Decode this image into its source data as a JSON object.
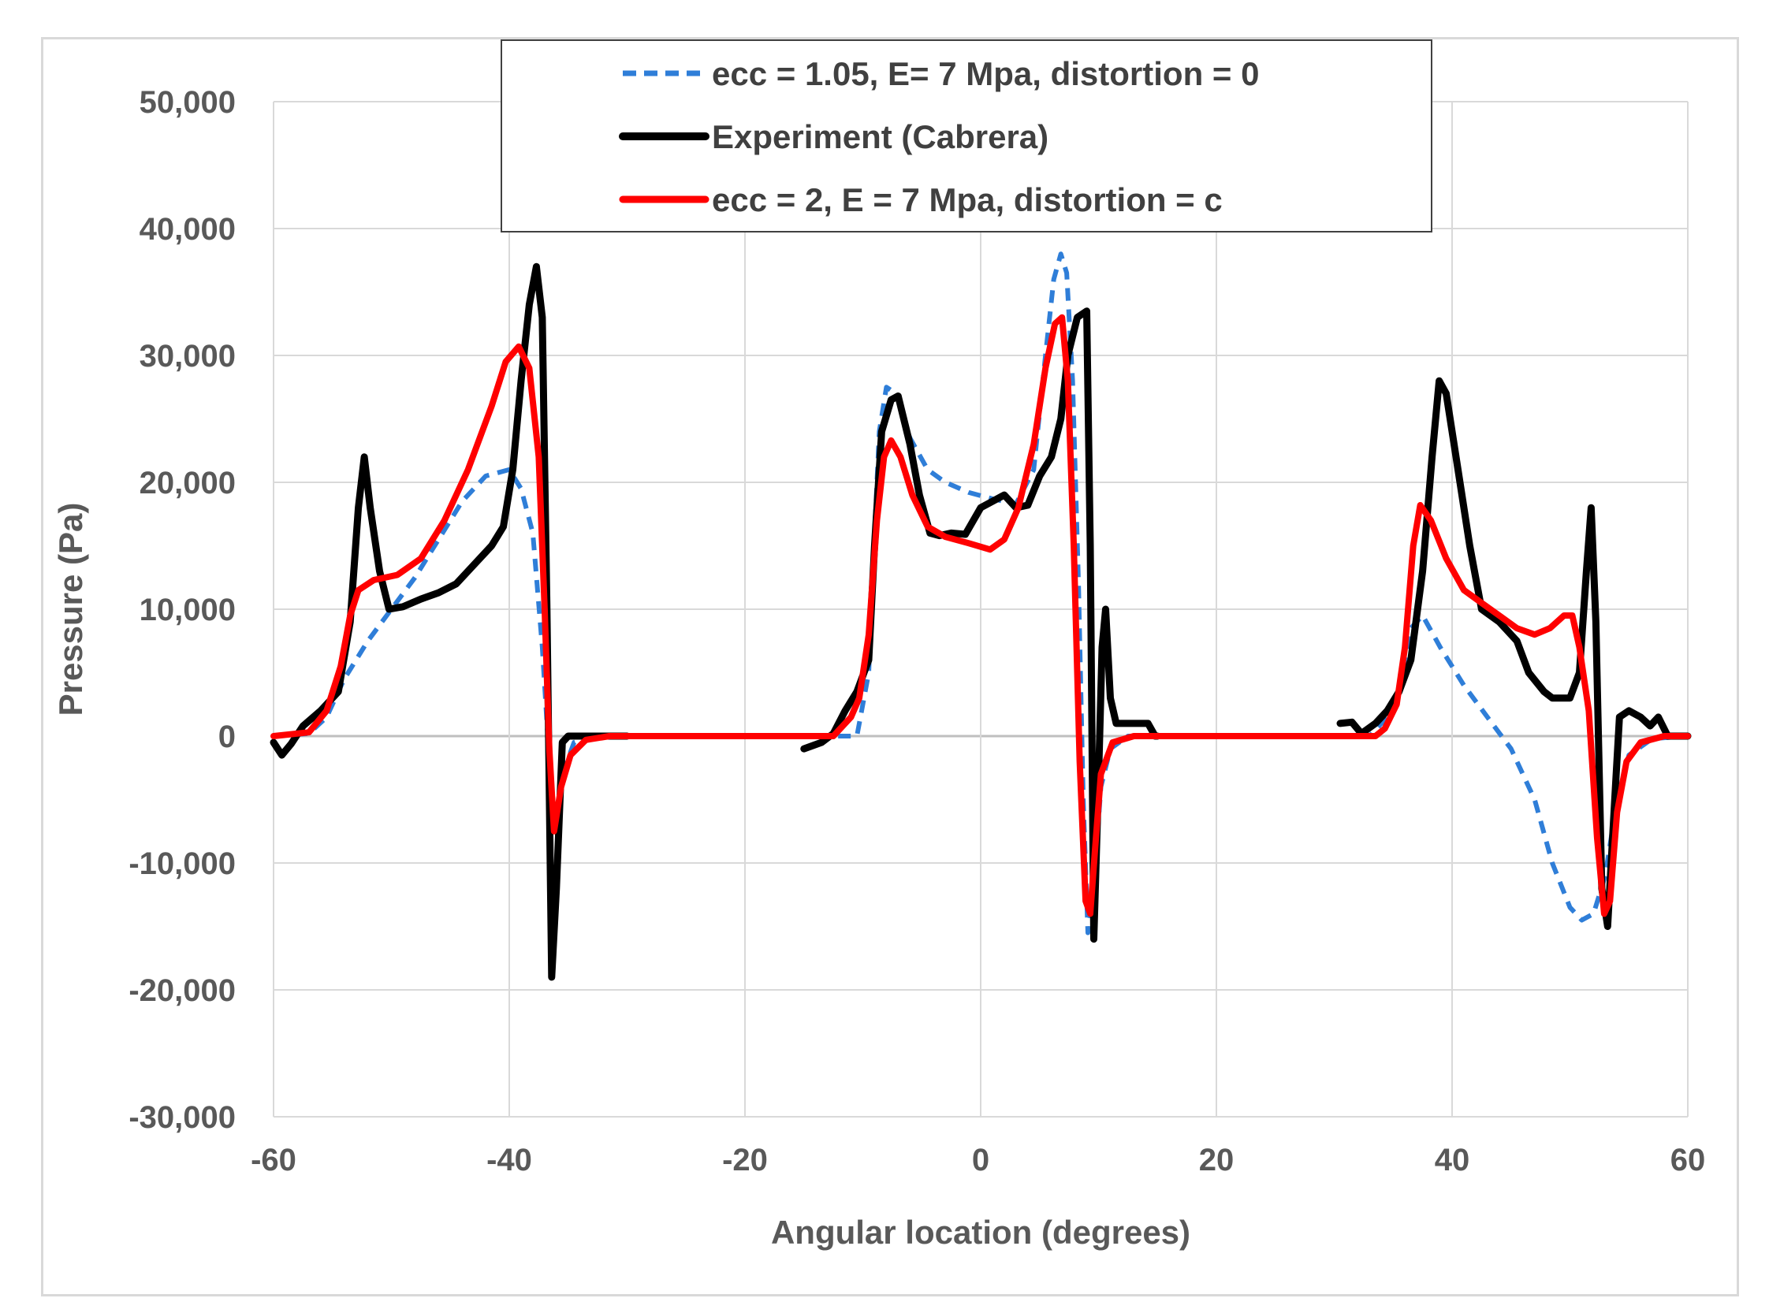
{
  "chart_data": {
    "type": "line",
    "title": "",
    "xlabel": "Angular location (degrees)",
    "ylabel": "Pressure (Pa)",
    "xlim": [
      -60,
      60
    ],
    "ylim": [
      -30000,
      50000
    ],
    "xticks": [
      -60,
      -40,
      -20,
      0,
      20,
      40,
      60
    ],
    "yticks": [
      50000,
      40000,
      30000,
      20000,
      10000,
      0,
      -10000,
      -20000,
      -30000
    ],
    "xtick_labels": [
      "-60",
      "-40",
      "-20",
      "0",
      "20",
      "40",
      "60"
    ],
    "ytick_labels": [
      "50,000",
      "40,000",
      "30,000",
      "20,000",
      "10,000",
      "0",
      "-10,000",
      "-20,000",
      "-30,000"
    ],
    "grid": true,
    "legend_position": "top-center",
    "series": [
      {
        "name": "ecc = 1.05, E= 7 Mpa, distortion = 0",
        "color": "#2f7ed8",
        "style": "dashed",
        "segments": [
          [
            [
              -60,
              0
            ],
            [
              -57,
              200
            ],
            [
              -55.5,
              1500
            ],
            [
              -54,
              4500
            ],
            [
              -52,
              7500
            ],
            [
              -50,
              10000
            ],
            [
              -48,
              12500
            ],
            [
              -46,
              15500
            ],
            [
              -44,
              18500
            ],
            [
              -42,
              20500
            ],
            [
              -40,
              21000
            ],
            [
              -39,
              19500
            ],
            [
              -38,
              16000
            ],
            [
              -37.2,
              7000
            ],
            [
              -36.6,
              -2000
            ],
            [
              -36.1,
              -7000
            ],
            [
              -35.5,
              -3000
            ],
            [
              -34.5,
              -500
            ],
            [
              -33,
              0
            ],
            [
              -30,
              0
            ],
            [
              -20,
              0
            ],
            [
              -10.5,
              0
            ],
            [
              -9.5,
              5000
            ],
            [
              -9,
              16000
            ],
            [
              -8.6,
              24000
            ],
            [
              -8,
              27500
            ],
            [
              -7.2,
              27000
            ],
            [
              -6,
              23500
            ],
            [
              -4.5,
              21000
            ],
            [
              -3,
              20000
            ],
            [
              -1,
              19200
            ],
            [
              1,
              18700
            ],
            [
              3,
              18300
            ],
            [
              4.5,
              21000
            ],
            [
              5.5,
              30000
            ],
            [
              6.2,
              36000
            ],
            [
              6.8,
              38000
            ],
            [
              7.3,
              36500
            ],
            [
              7.8,
              28000
            ],
            [
              8.3,
              12000
            ],
            [
              8.7,
              -5000
            ],
            [
              9.1,
              -15500
            ],
            [
              9.6,
              -12000
            ],
            [
              10.2,
              -4000
            ],
            [
              11,
              -1000
            ],
            [
              12.5,
              0
            ],
            [
              20,
              0
            ],
            [
              33,
              0
            ],
            [
              34.5,
              1500
            ],
            [
              35.5,
              3500
            ],
            [
              36,
              6000
            ],
            [
              36.5,
              8500
            ],
            [
              37.5,
              9500
            ],
            [
              39,
              7000
            ],
            [
              41,
              4000
            ],
            [
              43,
              1500
            ],
            [
              45,
              -1000
            ],
            [
              47,
              -5000
            ],
            [
              48.5,
              -10000
            ],
            [
              50,
              -13500
            ],
            [
              51,
              -14500
            ],
            [
              52,
              -14000
            ],
            [
              53,
              -11000
            ],
            [
              54,
              -5000
            ],
            [
              55,
              -1500
            ],
            [
              57,
              -200
            ],
            [
              60,
              0
            ]
          ]
        ]
      },
      {
        "name": "Experiment (Cabrera)",
        "color": "#000000",
        "style": "solid",
        "segments": [
          [
            [
              -60,
              -500
            ],
            [
              -59.3,
              -1500
            ],
            [
              -58.5,
              -600
            ],
            [
              -57.5,
              800
            ],
            [
              -56,
              2000
            ],
            [
              -54.5,
              3500
            ],
            [
              -53.5,
              9000
            ],
            [
              -52.8,
              18000
            ],
            [
              -52.3,
              22000
            ],
            [
              -51.8,
              18000
            ],
            [
              -51,
              13000
            ],
            [
              -50.2,
              10000
            ],
            [
              -49,
              10200
            ],
            [
              -47.5,
              10800
            ],
            [
              -46,
              11300
            ],
            [
              -44.5,
              12000
            ],
            [
              -43,
              13500
            ],
            [
              -41.5,
              15000
            ],
            [
              -40.5,
              16500
            ],
            [
              -39.7,
              21000
            ],
            [
              -39,
              28000
            ],
            [
              -38.3,
              34000
            ],
            [
              -37.7,
              37000
            ],
            [
              -37.2,
              33000
            ],
            [
              -36.8,
              10000
            ],
            [
              -36.4,
              -19000
            ],
            [
              -36,
              -12000
            ],
            [
              -35.5,
              -500
            ],
            [
              -35,
              0
            ],
            [
              -33,
              0
            ],
            [
              -30,
              0
            ]
          ],
          [
            [
              -15,
              -1000
            ],
            [
              -13.5,
              -500
            ],
            [
              -12.5,
              200
            ],
            [
              -11.5,
              2000
            ],
            [
              -10.5,
              3500
            ],
            [
              -9.5,
              6000
            ],
            [
              -9,
              15000
            ],
            [
              -8.4,
              24000
            ],
            [
              -7.6,
              26500
            ],
            [
              -7,
              26800
            ],
            [
              -6,
              23000
            ],
            [
              -5.2,
              19000
            ],
            [
              -4.3,
              16000
            ],
            [
              -3.5,
              15800
            ],
            [
              -2.5,
              16000
            ],
            [
              -1.3,
              15900
            ],
            [
              0,
              18000
            ],
            [
              1,
              18500
            ],
            [
              2,
              19000
            ],
            [
              3,
              18000
            ],
            [
              4,
              18200
            ],
            [
              5,
              20500
            ],
            [
              6,
              22000
            ],
            [
              6.8,
              25000
            ],
            [
              7.4,
              30000
            ],
            [
              8.2,
              33000
            ],
            [
              9,
              33500
            ],
            [
              9.3,
              15000
            ],
            [
              9.6,
              -16000
            ],
            [
              9.95,
              -5000
            ],
            [
              10.3,
              7000
            ],
            [
              10.6,
              10000
            ],
            [
              11,
              3000
            ],
            [
              11.5,
              1000
            ],
            [
              13,
              1000
            ],
            [
              14.2,
              1000
            ],
            [
              14.8,
              0
            ],
            [
              15,
              0
            ]
          ],
          [
            [
              30.5,
              1000
            ],
            [
              31.5,
              1100
            ],
            [
              32.3,
              200
            ],
            [
              33.5,
              1000
            ],
            [
              34.5,
              2000
            ],
            [
              35.5,
              3500
            ],
            [
              36.5,
              6000
            ],
            [
              37.5,
              13000
            ],
            [
              38.3,
              22000
            ],
            [
              38.9,
              28000
            ],
            [
              39.5,
              27000
            ],
            [
              40.5,
              21000
            ],
            [
              41.5,
              15000
            ],
            [
              42.5,
              10000
            ],
            [
              44,
              9000
            ],
            [
              45.5,
              7500
            ],
            [
              46.5,
              5000
            ],
            [
              47.8,
              3500
            ],
            [
              48.5,
              3000
            ],
            [
              50,
              3000
            ],
            [
              50.8,
              5000
            ],
            [
              51.4,
              13000
            ],
            [
              51.8,
              18000
            ],
            [
              52.2,
              9000
            ],
            [
              52.7,
              -12000
            ],
            [
              53.2,
              -15000
            ],
            [
              53.8,
              -5000
            ],
            [
              54.2,
              1500
            ],
            [
              55,
              2000
            ],
            [
              56,
              1500
            ],
            [
              56.8,
              800
            ],
            [
              57.5,
              1500
            ],
            [
              58.3,
              0
            ],
            [
              60,
              0
            ]
          ]
        ]
      },
      {
        "name": "ecc = 2, E = 7 Mpa, distortion = c",
        "color": "#ff0000",
        "style": "solid",
        "segments": [
          [
            [
              -60,
              0
            ],
            [
              -57,
              300
            ],
            [
              -55.5,
              2000
            ],
            [
              -54.3,
              5500
            ],
            [
              -53.5,
              9500
            ],
            [
              -52.8,
              11500
            ],
            [
              -51.5,
              12300
            ],
            [
              -49.5,
              12700
            ],
            [
              -47.5,
              14000
            ],
            [
              -45.5,
              17000
            ],
            [
              -43.5,
              21000
            ],
            [
              -41.5,
              26000
            ],
            [
              -40.3,
              29500
            ],
            [
              -39.2,
              30700
            ],
            [
              -38.3,
              29000
            ],
            [
              -37.5,
              22000
            ],
            [
              -37,
              10000
            ],
            [
              -36.6,
              -1000
            ],
            [
              -36.2,
              -7500
            ],
            [
              -35.6,
              -4000
            ],
            [
              -34.8,
              -1500
            ],
            [
              -33.5,
              -300
            ],
            [
              -31.5,
              0
            ],
            [
              -20,
              0
            ],
            [
              -12.5,
              0
            ],
            [
              -11,
              1500
            ],
            [
              -10.3,
              3000
            ],
            [
              -9.5,
              8000
            ],
            [
              -8.8,
              17000
            ],
            [
              -8.2,
              22000
            ],
            [
              -7.6,
              23300
            ],
            [
              -6.8,
              22000
            ],
            [
              -5.8,
              19000
            ],
            [
              -4.5,
              16500
            ],
            [
              -3,
              15700
            ],
            [
              -1,
              15200
            ],
            [
              0.8,
              14700
            ],
            [
              2,
              15500
            ],
            [
              3.2,
              18000
            ],
            [
              4.5,
              23000
            ],
            [
              5.5,
              29000
            ],
            [
              6.3,
              32500
            ],
            [
              6.9,
              33000
            ],
            [
              7.4,
              28000
            ],
            [
              7.9,
              15000
            ],
            [
              8.4,
              -2000
            ],
            [
              8.9,
              -13000
            ],
            [
              9.3,
              -14000
            ],
            [
              9.7,
              -9000
            ],
            [
              10.2,
              -3000
            ],
            [
              11.2,
              -500
            ],
            [
              13,
              0
            ],
            [
              20,
              0
            ],
            [
              33.5,
              0
            ],
            [
              34.3,
              600
            ],
            [
              35.3,
              2500
            ],
            [
              36,
              7000
            ],
            [
              36.7,
              15000
            ],
            [
              37.3,
              18200
            ],
            [
              38.2,
              17000
            ],
            [
              39.5,
              14000
            ],
            [
              41,
              11500
            ],
            [
              42.5,
              10500
            ],
            [
              44,
              9500
            ],
            [
              45.5,
              8500
            ],
            [
              47,
              8000
            ],
            [
              48.3,
              8500
            ],
            [
              49.5,
              9500
            ],
            [
              50.2,
              9500
            ],
            [
              50.8,
              7000
            ],
            [
              51.6,
              2000
            ],
            [
              52.3,
              -8000
            ],
            [
              52.9,
              -14000
            ],
            [
              53.4,
              -13000
            ],
            [
              54,
              -6000
            ],
            [
              54.8,
              -2000
            ],
            [
              56,
              -500
            ],
            [
              58,
              0
            ],
            [
              60,
              0
            ]
          ]
        ]
      }
    ]
  }
}
